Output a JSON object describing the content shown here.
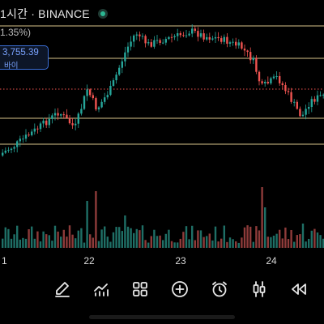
{
  "header": {
    "title": "1시간 · BINANCE",
    "change": "1.35%)"
  },
  "price_label": {
    "value": "3,755.39",
    "action": "바이"
  },
  "chart_data": {
    "type": "candlestick",
    "x_labels": [
      "1",
      "22",
      "23",
      "24"
    ],
    "colors": {
      "up": "#26a69a",
      "down": "#ef5350",
      "guide": "#d8c38a",
      "current": "#ef5350"
    }
  },
  "toolbar": {
    "items": [
      {
        "name": "draw-pen-icon"
      },
      {
        "name": "indicators-icon"
      },
      {
        "name": "grid-layout-icon"
      },
      {
        "name": "add-circle-icon"
      },
      {
        "name": "alarm-clock-icon"
      },
      {
        "name": "candles-icon"
      },
      {
        "name": "replay-rewind-icon"
      }
    ]
  }
}
